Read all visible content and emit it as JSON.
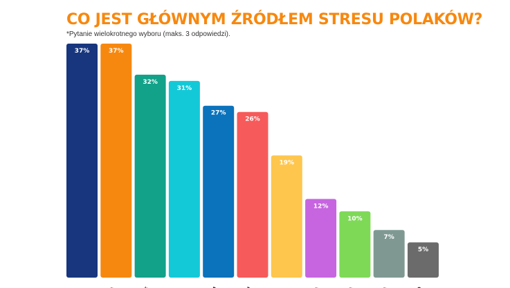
{
  "title": "CO JEST GŁÓWNYM ŹRÓDŁEM STRESU POLAKÓW?",
  "subtitle": "*Pytanie wielokrotnego wyboru (maks. 3 odpowiedzi).",
  "chart_data": {
    "type": "bar",
    "title": "CO JEST GŁÓWNYM ŹRÓDŁEM STRESU POLAKÓW?",
    "subtitle": "*Pytanie wielokrotnego wyboru (maks. 3 odpowiedzi).",
    "xlabel": "",
    "ylabel": "",
    "ylim": [
      0,
      37
    ],
    "grid": false,
    "categories": [
      "WIE",
      "CJA\nIA",
      "NE\nMI",
      "CA",
      "YM\nU",
      "CIU\nM",
      "JA",
      "DIA\nIE",
      "JA\nIA",
      "NIA\nE",
      "NO\nĆ"
    ],
    "values": [
      37,
      37,
      32,
      31,
      27,
      26,
      19,
      12,
      10,
      7,
      5
    ],
    "value_labels": [
      "37%",
      "37%",
      "32%",
      "31%",
      "27%",
      "26%",
      "19%",
      "12%",
      "10%",
      "7%",
      "5%"
    ],
    "colors": [
      "#17367e",
      "#f7880f",
      "#12a189",
      "#13c9d8",
      "#0b72bc",
      "#f75a5a",
      "#fec64d",
      "#c765e0",
      "#7ed957",
      "#7f9992",
      "#6c6b6b"
    ]
  }
}
